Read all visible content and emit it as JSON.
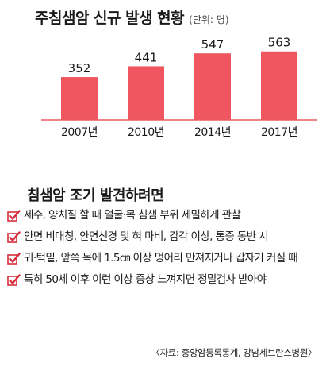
{
  "header": {
    "title": "주침샘암 신규 발생 현황",
    "unit": "(단위: 명)"
  },
  "chart_data": {
    "type": "bar",
    "categories": [
      "2007년",
      "2010년",
      "2014년",
      "2017년"
    ],
    "values": [
      352,
      441,
      547,
      563
    ],
    "data_labels": [
      "352",
      "441",
      "547",
      "563"
    ],
    "title": "주침샘암 신규 발생 현황",
    "unit": "(단위: 명)",
    "xlabel": "",
    "ylabel": "",
    "ylim": [
      0,
      620
    ],
    "grid": false,
    "bar_color": "#f0565f",
    "axis_color": "#e85a60"
  },
  "tips": {
    "title": "침샘암 조기 발견하려면",
    "check_color": "#d62e3a",
    "items": [
      "세수, 양치질 할 때 얼굴·목 침샘 부위 세밀하게 관찰",
      "안면 비대칭, 안면신경 및 혀 마비, 감각 이상, 통증 동반 시",
      "귀·턱밑, 앞쪽 목에 1.5㎝ 이상 멍어리 만져지거나 갑자기 커질 때",
      "특히 50세 이후 이런 이상 증상 느껴지면 정밀검사 받아야"
    ]
  },
  "source": "〈자료: 중앙암등록통계, 강남세브란스병원〉"
}
